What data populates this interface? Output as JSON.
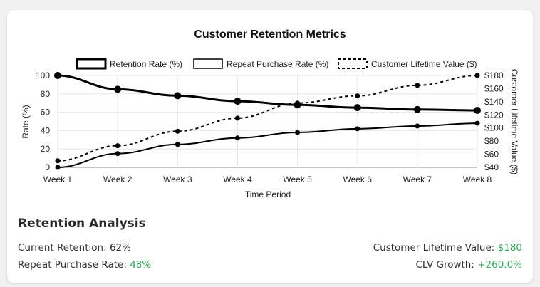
{
  "chart_data": {
    "type": "line",
    "title": "Customer Retention Metrics",
    "categories": [
      "Week 1",
      "Week 2",
      "Week 3",
      "Week 4",
      "Week 5",
      "Week 6",
      "Week 7",
      "Week 8"
    ],
    "xlabel": "Time Period",
    "ylabel_left": "Rate (%)",
    "ylabel_right": "Customer Lifetime Value ($)",
    "y_left": {
      "range": [
        0,
        100
      ],
      "ticks": [
        "0",
        "20",
        "40",
        "60",
        "80",
        "100"
      ]
    },
    "y_right": {
      "range": [
        40,
        180
      ],
      "ticks": [
        "$40",
        "$60",
        "$80",
        "$100",
        "$120",
        "$140",
        "$160",
        "$180"
      ]
    },
    "legend_position": "top",
    "grid": true,
    "series": [
      {
        "name": "Retention Rate (%)",
        "axis": "left",
        "style": "solid-thick",
        "values": [
          100,
          85,
          78,
          72,
          68,
          65,
          63,
          62
        ]
      },
      {
        "name": "Repeat Purchase Rate (%)",
        "axis": "left",
        "style": "solid",
        "values": [
          0,
          15,
          25,
          32,
          38,
          42,
          45,
          48
        ]
      },
      {
        "name": "Customer Lifetime Value ($)",
        "axis": "right",
        "style": "dashed",
        "values": [
          50,
          73,
          95,
          115,
          138,
          149,
          165,
          180
        ]
      }
    ]
  },
  "analysis": {
    "title": "Retention Analysis",
    "current_retention_label": "Current Retention: ",
    "current_retention_value": "62%",
    "repeat_rate_label": "Repeat Purchase Rate: ",
    "repeat_rate_value": "48%",
    "clv_label": "Customer Lifetime Value: ",
    "clv_value": "$180",
    "clv_growth_label": "CLV Growth: ",
    "clv_growth_value": "+260.0%",
    "highlight_color": "#3aa55a"
  }
}
